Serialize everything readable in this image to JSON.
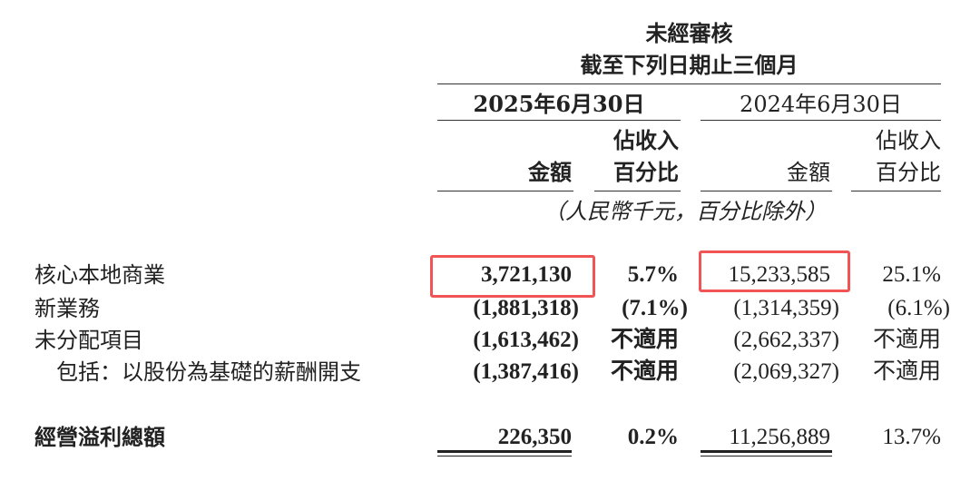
{
  "header": {
    "audit": "未經審核",
    "period": "截至下列日期止三個月",
    "date_2025": "2025年6月30日",
    "date_2024": "2024年6月30日",
    "amount": "金額",
    "pct_line1": "佔收入",
    "pct_line2": "百分比",
    "unit_note": "（人民幣千元，百分比除外）"
  },
  "rows": [
    {
      "label": "核心本地商業",
      "a2025": "3,721,130",
      "p2025": "5.7%",
      "a2024": "15,233,585",
      "p2024": "25.1%"
    },
    {
      "label": "新業務",
      "a2025": "(1,881,318)",
      "p2025": "(7.1%)",
      "a2024": "(1,314,359)",
      "p2024": "(6.1%)"
    },
    {
      "label": "未分配項目",
      "a2025": "(1,613,462)",
      "p2025": "不適用",
      "a2024": "(2,662,337)",
      "p2024": "不適用"
    },
    {
      "label": "包括：以股份為基礎的薪酬開支",
      "a2025": "(1,387,416)",
      "p2025": "不適用",
      "a2024": "(2,069,327)",
      "p2024": "不適用"
    },
    {
      "label": "經營溢利總額",
      "a2025": "226,350",
      "p2025": "0.2%",
      "a2024": "11,256,889",
      "p2024": "13.7%"
    }
  ],
  "highlight_color": "#f05454"
}
